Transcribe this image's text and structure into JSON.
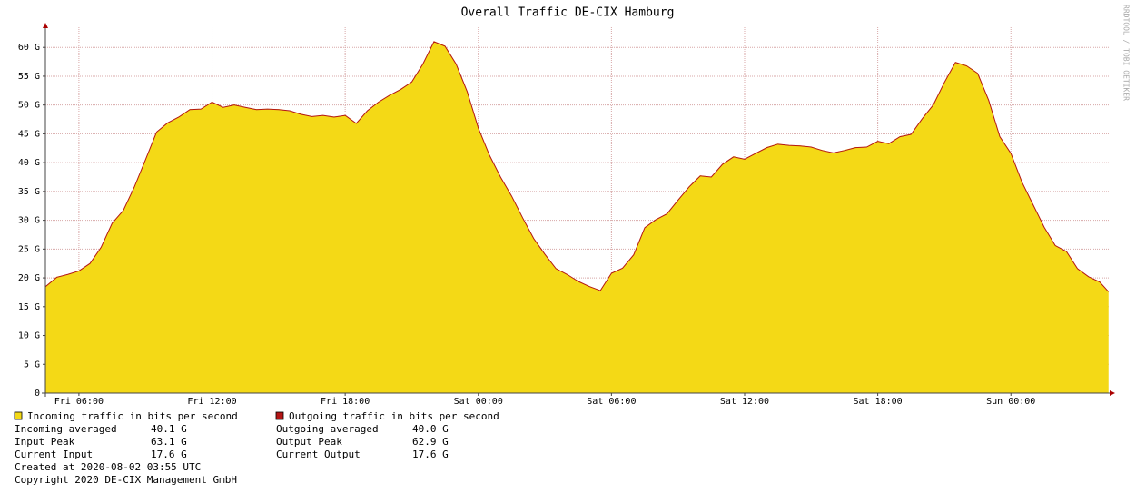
{
  "chart_data": {
    "type": "area",
    "title": "Overall Traffic DE-CIX Hamburg",
    "side_label": "RRDTOOL / TOBI OETIKER",
    "x": [
      4.5,
      5,
      5.5,
      6,
      6.5,
      7,
      7.5,
      8,
      8.5,
      9,
      9.5,
      10,
      10.5,
      11,
      11.5,
      12,
      12.5,
      13,
      13.5,
      14,
      14.5,
      15,
      15.5,
      16,
      16.5,
      17,
      17.5,
      18,
      18.5,
      19,
      19.5,
      20,
      20.5,
      21,
      21.5,
      22,
      22.5,
      23,
      23.5,
      24,
      24.5,
      25,
      25.5,
      26,
      26.5,
      27,
      27.5,
      28,
      28.5,
      29,
      29.5,
      30,
      30.5,
      31,
      31.5,
      32,
      32.5,
      33,
      33.5,
      34,
      34.5,
      35,
      35.5,
      36,
      36.5,
      37,
      37.5,
      38,
      38.5,
      39,
      39.5,
      40,
      40.5,
      41,
      41.5,
      42,
      42.5,
      43,
      43.5,
      44,
      44.5,
      45,
      45.5,
      46,
      46.5,
      47,
      47.5,
      48,
      48.5,
      49,
      49.5,
      50,
      50.5,
      51,
      51.5,
      52,
      52.4
    ],
    "xlim": [
      4.49,
      52.41
    ],
    "xticks": [
      {
        "value": 6,
        "label": "Fri 06:00"
      },
      {
        "value": 12,
        "label": "Fri 12:00"
      },
      {
        "value": 18,
        "label": "Fri 18:00"
      },
      {
        "value": 24,
        "label": "Sat 00:00"
      },
      {
        "value": 30,
        "label": "Sat 06:00"
      },
      {
        "value": 36,
        "label": "Sat 12:00"
      },
      {
        "value": 42,
        "label": "Sat 18:00"
      },
      {
        "value": 48,
        "label": "Sun 00:00"
      }
    ],
    "ylim": [
      0,
      63.5
    ],
    "yticks": [
      0,
      {
        "value": 5,
        "label": "5 G"
      },
      {
        "value": 10,
        "label": "10 G"
      },
      {
        "value": 15,
        "label": "15 G"
      },
      {
        "value": 20,
        "label": "20 G"
      },
      {
        "value": 25,
        "label": "25 G"
      },
      {
        "value": 30,
        "label": "30 G"
      },
      {
        "value": 35,
        "label": "35 G"
      },
      {
        "value": 40,
        "label": "40 G"
      },
      {
        "value": 45,
        "label": "45 G"
      },
      {
        "value": 50,
        "label": "50 G"
      },
      {
        "value": 55,
        "label": "55 G"
      },
      {
        "value": 60,
        "label": "60 G"
      }
    ],
    "grid": true,
    "series": [
      {
        "name": "Incoming traffic in bits per second",
        "color": "#f4d916",
        "style": "area",
        "values": [
          18.6,
          20.2,
          20.6,
          21.3,
          22.5,
          25.4,
          29.6,
          31.7,
          35.9,
          40.6,
          45.4,
          46.9,
          48.0,
          49.3,
          49.3,
          50.6,
          49.6,
          50.1,
          49.6,
          49.3,
          49.3,
          49.3,
          49.0,
          48.5,
          48.0,
          48.2,
          48.0,
          48.2,
          46.9,
          49.0,
          50.6,
          51.7,
          52.8,
          54.0,
          57.2,
          61.1,
          60.3,
          57.2,
          52.4,
          46.1,
          41.4,
          37.5,
          34.3,
          30.4,
          26.9,
          24.1,
          21.7,
          20.6,
          19.4,
          18.6,
          17.8,
          20.9,
          21.7,
          24.1,
          28.8,
          30.1,
          31.2,
          33.5,
          35.9,
          37.8,
          37.5,
          39.8,
          41.1,
          40.6,
          41.7,
          42.7,
          43.3,
          43.0,
          43.0,
          42.7,
          42.2,
          41.7,
          42.2,
          42.7,
          42.7,
          43.8,
          43.3,
          44.6,
          44.9,
          47.7,
          50.1,
          54.0,
          57.5,
          56.9,
          55.6,
          50.9,
          44.6,
          41.7,
          36.7,
          32.8,
          28.8,
          25.7,
          24.6,
          21.7,
          20.2,
          19.4,
          17.6
        ]
      },
      {
        "name": "Outgoing traffic in bits per second",
        "color": "#b31515",
        "style": "line",
        "values": [
          18.5,
          20.1,
          20.6,
          21.2,
          22.5,
          25.3,
          29.5,
          31.7,
          35.8,
          40.5,
          45.3,
          46.9,
          47.9,
          49.2,
          49.3,
          50.5,
          49.6,
          50.0,
          49.6,
          49.2,
          49.3,
          49.2,
          49.0,
          48.4,
          48.0,
          48.2,
          47.9,
          48.2,
          46.8,
          49.0,
          50.5,
          51.7,
          52.7,
          54.0,
          57.1,
          61.0,
          60.2,
          57.1,
          52.3,
          46.0,
          41.3,
          37.5,
          34.2,
          30.4,
          26.8,
          24.1,
          21.6,
          20.6,
          19.4,
          18.5,
          17.8,
          20.8,
          21.7,
          24.0,
          28.7,
          30.1,
          31.1,
          33.5,
          35.8,
          37.7,
          37.5,
          39.7,
          41.0,
          40.6,
          41.6,
          42.6,
          43.2,
          43.0,
          42.9,
          42.7,
          42.1,
          41.7,
          42.1,
          42.6,
          42.7,
          43.7,
          43.3,
          44.5,
          44.9,
          47.6,
          50.0,
          53.9,
          57.4,
          56.8,
          55.5,
          50.8,
          44.5,
          41.6,
          36.6,
          32.7,
          28.8,
          25.6,
          24.6,
          21.6,
          20.2,
          19.3,
          17.6
        ]
      }
    ],
    "stats": [
      [
        {
          "label": "Incoming averaged",
          "value": "40.1 G"
        },
        {
          "label": "Input Peak",
          "value": "63.1 G"
        },
        {
          "label": "Current Input",
          "value": "17.6 G"
        }
      ],
      [
        {
          "label": "Outgoing averaged",
          "value": "40.0 G"
        },
        {
          "label": "Output Peak",
          "value": "62.9 G"
        },
        {
          "label": "Current Output",
          "value": "17.6 G"
        }
      ]
    ],
    "notes": [
      "Created at 2020-08-02 03:55 UTC",
      "Copyright 2020 DE-CIX Management GmbH"
    ]
  }
}
